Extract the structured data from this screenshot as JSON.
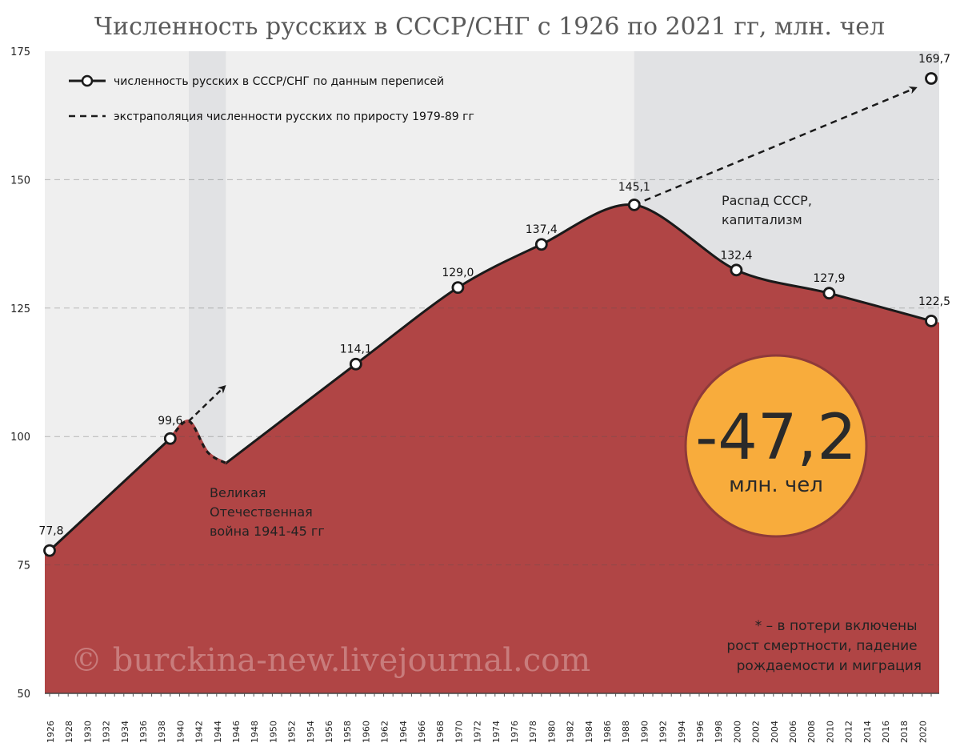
{
  "chart_data": {
    "type": "area",
    "title": "Численность русских в СССР/СНГ с 1926 по 2021 гг, млн. чел",
    "ylim": [
      50,
      175
    ],
    "yticks": [
      50,
      75,
      100,
      125,
      150,
      175
    ],
    "xlim": [
      1925,
      2022
    ],
    "xticks": [
      1926,
      1928,
      1930,
      1932,
      1934,
      1936,
      1938,
      1940,
      1942,
      1944,
      1946,
      1948,
      1950,
      1952,
      1954,
      1956,
      1958,
      1960,
      1962,
      1964,
      1966,
      1968,
      1970,
      1972,
      1974,
      1976,
      1978,
      1980,
      1982,
      1984,
      1986,
      1988,
      1990,
      1992,
      1994,
      1996,
      1998,
      2000,
      2002,
      2004,
      2006,
      2008,
      2010,
      2012,
      2014,
      2016,
      2018,
      2020
    ],
    "grid": true,
    "series": [
      {
        "name": "численность русских в СССР/СНГ по данным переписей",
        "points": [
          {
            "x": 1926,
            "y": 77.8,
            "label": "77,8"
          },
          {
            "x": 1939,
            "y": 99.6,
            "label": "99,6"
          },
          {
            "x": 1959,
            "y": 114.1,
            "label": "114,1"
          },
          {
            "x": 1970,
            "y": 129.0,
            "label": "129,0"
          },
          {
            "x": 1979,
            "y": 137.4,
            "label": "137,4"
          },
          {
            "x": 1989,
            "y": 145.1,
            "label": "145,1"
          },
          {
            "x": 2000,
            "y": 132.4,
            "label": "132,4"
          },
          {
            "x": 2010,
            "y": 127.9,
            "label": "127,9"
          },
          {
            "x": 2021,
            "y": 122.5,
            "label": "122,5"
          }
        ]
      },
      {
        "name": "экстраполяция численности русских по приросту 1979-89 гг",
        "points": [
          {
            "x": 1989,
            "y": 145.1
          },
          {
            "x": 2021,
            "y": 169.7,
            "label": "169,7"
          }
        ]
      }
    ],
    "war_curve": [
      {
        "x": 1939,
        "y": 99.6
      },
      {
        "x": 1941,
        "y": 103.0
      },
      {
        "x": 1943,
        "y": 97.0
      },
      {
        "x": 1945,
        "y": 94.8
      }
    ],
    "war_arrow": [
      {
        "x": 1941,
        "y": 103.0
      },
      {
        "x": 1945,
        "y": 110.0
      }
    ],
    "shaded_periods": [
      {
        "from": 1941,
        "to": 1945
      },
      {
        "from": 1989,
        "to": 2022
      }
    ],
    "annotations": {
      "war": [
        "Великая",
        "Отечественная",
        "война 1941-45 гг"
      ],
      "collapse": [
        "Распад СССР,",
        "капитализм"
      ],
      "note": [
        "* – в потери включены",
        "рост смертности, падение",
        "рождаемости и миграция"
      ]
    },
    "badge": {
      "value": "-47,2",
      "unit": "млн. чел"
    },
    "watermark": "© burckina-new.livejournal.com",
    "colors": {
      "area": "#b04545",
      "area_dark": "#8f3a3a",
      "bg": "#efefef",
      "shade": "#e1e2e4",
      "badge": "#f8ac3c",
      "line": "#1a1a1a"
    }
  }
}
